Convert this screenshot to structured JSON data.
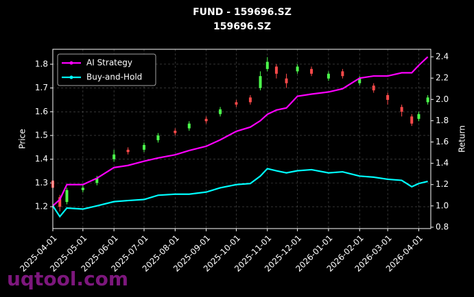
{
  "chart_data": {
    "type": "candlestick",
    "title": "FUND - 159696.SZ",
    "subtitle": "159696.SZ",
    "y_label": "Price",
    "y2_label": "Return",
    "watermark": "uqtool.com",
    "x": [
      "2025-04-01",
      "2025-04-08",
      "2025-04-15",
      "2025-05-01",
      "2025-05-15",
      "2025-06-01",
      "2025-06-15",
      "2025-07-01",
      "2025-07-15",
      "2025-08-01",
      "2025-08-15",
      "2025-09-01",
      "2025-09-15",
      "2025-10-01",
      "2025-10-15",
      "2025-10-25",
      "2025-11-01",
      "2025-11-10",
      "2025-11-20",
      "2025-12-01",
      "2025-12-15",
      "2026-01-01",
      "2026-01-15",
      "2026-02-01",
      "2026-02-15",
      "2026-03-01",
      "2026-03-15",
      "2026-03-25",
      "2026-04-01",
      "2026-04-10"
    ],
    "open": [
      1.31,
      1.24,
      1.22,
      1.27,
      1.3,
      1.4,
      1.44,
      1.44,
      1.48,
      1.52,
      1.53,
      1.57,
      1.59,
      1.64,
      1.66,
      1.7,
      1.78,
      1.79,
      1.74,
      1.77,
      1.78,
      1.74,
      1.77,
      1.72,
      1.71,
      1.67,
      1.62,
      1.58,
      1.57,
      1.64
    ],
    "high": [
      1.32,
      1.25,
      1.28,
      1.29,
      1.33,
      1.44,
      1.45,
      1.47,
      1.51,
      1.53,
      1.56,
      1.58,
      1.62,
      1.65,
      1.67,
      1.77,
      1.83,
      1.8,
      1.76,
      1.8,
      1.79,
      1.77,
      1.78,
      1.75,
      1.72,
      1.68,
      1.63,
      1.59,
      1.6,
      1.67
    ],
    "low": [
      1.27,
      1.18,
      1.21,
      1.26,
      1.29,
      1.39,
      1.42,
      1.43,
      1.47,
      1.5,
      1.52,
      1.55,
      1.58,
      1.62,
      1.63,
      1.69,
      1.77,
      1.74,
      1.7,
      1.76,
      1.75,
      1.73,
      1.74,
      1.71,
      1.68,
      1.63,
      1.58,
      1.54,
      1.56,
      1.63
    ],
    "close": [
      1.28,
      1.2,
      1.27,
      1.28,
      1.32,
      1.42,
      1.43,
      1.46,
      1.5,
      1.51,
      1.55,
      1.56,
      1.61,
      1.63,
      1.64,
      1.75,
      1.81,
      1.76,
      1.72,
      1.79,
      1.76,
      1.76,
      1.75,
      1.74,
      1.69,
      1.65,
      1.6,
      1.55,
      1.59,
      1.66
    ],
    "up_color": "#4cff4c",
    "down_color": "#ff4a4a",
    "series": [
      {
        "name": "AI Strategy",
        "color": "#ff00ff",
        "axis": "y2",
        "values": [
          1.0,
          1.06,
          1.2,
          1.2,
          1.26,
          1.36,
          1.38,
          1.42,
          1.45,
          1.48,
          1.52,
          1.56,
          1.62,
          1.7,
          1.74,
          1.8,
          1.86,
          1.9,
          1.92,
          2.03,
          2.05,
          2.07,
          2.1,
          2.2,
          2.22,
          2.22,
          2.25,
          2.25,
          2.32,
          2.4
        ]
      },
      {
        "name": "Buy-and-Hold",
        "color": "#00ffff",
        "axis": "y2",
        "values": [
          1.0,
          0.9,
          0.98,
          0.97,
          1.0,
          1.04,
          1.05,
          1.06,
          1.1,
          1.11,
          1.11,
          1.13,
          1.17,
          1.2,
          1.21,
          1.28,
          1.35,
          1.33,
          1.31,
          1.33,
          1.34,
          1.31,
          1.32,
          1.28,
          1.27,
          1.25,
          1.24,
          1.18,
          1.21,
          1.23
        ]
      }
    ],
    "xlim": [
      "2025-04-01",
      "2026-04-13"
    ],
    "xticks": [
      "2025-04-01",
      "2025-05-01",
      "2025-06-01",
      "2025-07-01",
      "2025-08-01",
      "2025-09-01",
      "2025-10-01",
      "2025-11-01",
      "2025-12-01",
      "2026-01-01",
      "2026-02-01",
      "2026-03-01",
      "2026-04-01"
    ],
    "ylim": [
      1.108,
      1.863
    ],
    "yticks": [
      1.2,
      1.3,
      1.4,
      1.5,
      1.6,
      1.7,
      1.8
    ],
    "y2lim": [
      0.787,
      2.471
    ],
    "y2ticks": [
      {
        "value": 0.8,
        "label": "0.8"
      },
      {
        "value": 1,
        "label": "1.0"
      },
      {
        "value": 1.2,
        "label": "1.2"
      },
      {
        "value": 1.4,
        "label": "1.4"
      },
      {
        "value": 1.6,
        "label": "1.6"
      },
      {
        "value": 1.8,
        "label": "1.8"
      },
      {
        "value": 2,
        "label": "2.0"
      },
      {
        "value": 2.2,
        "label": "2.2"
      },
      {
        "value": 2.4,
        "label": "2.4"
      }
    ],
    "grid": true,
    "legend": "upper left"
  }
}
